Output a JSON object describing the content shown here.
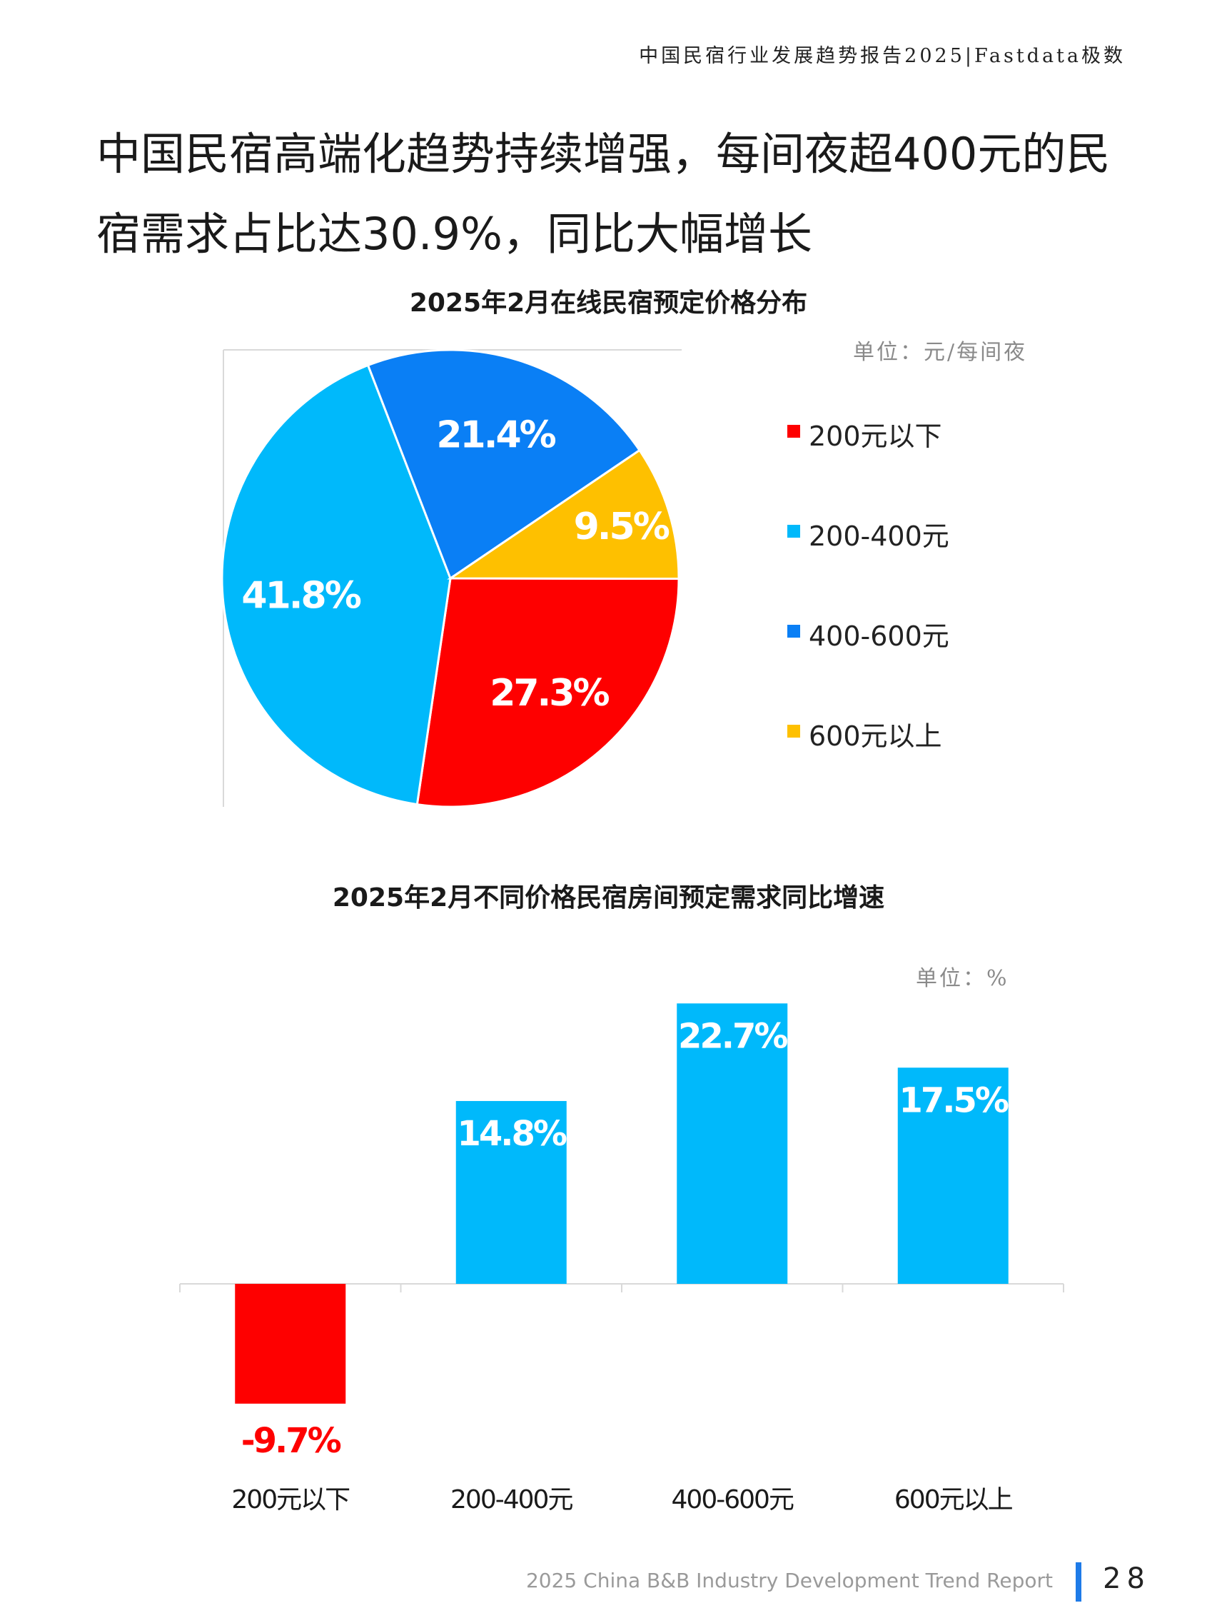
{
  "header": {
    "running_title": "中国民宿行业发展趋势报告2025|Fastdata极数"
  },
  "headline": "中国民宿高端化趋势持续增强，每间夜超400元的民宿需求占比达30.9%，同比大幅增长",
  "chart_data": [
    {
      "type": "pie",
      "title": "2025年2月在线民宿预定价格分布",
      "unit": "单位：元/每间夜",
      "slices": [
        {
          "label": "200元以下",
          "value": 27.3,
          "value_label": "27.3%",
          "color": "#fe0000"
        },
        {
          "label": "200-400元",
          "value": 41.8,
          "value_label": "41.8%",
          "color": "#00b9fb"
        },
        {
          "label": "400-600元",
          "value": 21.4,
          "value_label": "21.4%",
          "color": "#0a7ff5"
        },
        {
          "label": "600元以上",
          "value": 9.5,
          "value_label": "9.5%",
          "color": "#fec000"
        }
      ],
      "legend_position": "right"
    },
    {
      "type": "bar",
      "title": "2025年2月不同价格民宿房间预定需求同比增速",
      "unit": "单位：%",
      "categories": [
        "200元以下",
        "200-400元",
        "400-600元",
        "600元以上"
      ],
      "values": [
        -9.7,
        14.8,
        22.7,
        17.5
      ],
      "value_labels": [
        "-9.7%",
        "14.8%",
        "22.7%",
        "17.5%"
      ],
      "colors": [
        "#fe0000",
        "#00b9fb",
        "#00b9fb",
        "#00b9fb"
      ],
      "ylim": [
        -12,
        28
      ]
    }
  ],
  "footer": {
    "report_name": "2025 China B&B Industry Development Trend Report",
    "page_number": "28",
    "accent_color": "#1e7be8"
  }
}
